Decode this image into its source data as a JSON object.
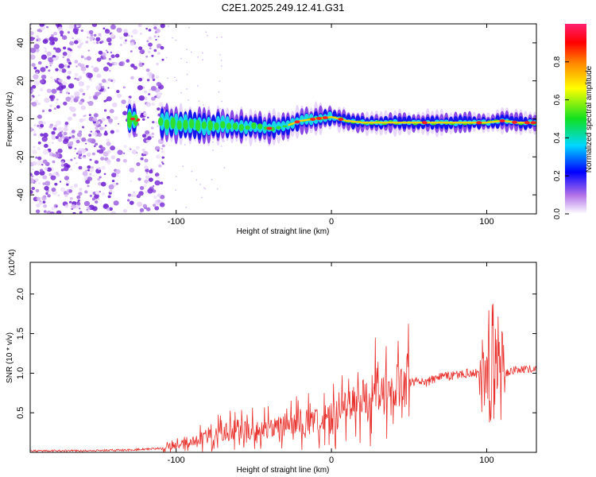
{
  "title": "C2E1.2025.249.12.41.G31",
  "chart_data": [
    {
      "type": "heatmap",
      "name": "spectrogram",
      "xlabel": "Height of straight line (km)",
      "ylabel": "Frequency (Hz)",
      "xlim": [
        -194,
        132
      ],
      "ylim": [
        -50,
        50
      ],
      "xticks": [
        -100,
        0,
        100
      ],
      "yticks": [
        -40,
        -20,
        0,
        20,
        40
      ],
      "colorbar": {
        "label": "Normalized spectral amplitude",
        "range": [
          0,
          1
        ],
        "ticks": [
          0.0,
          0.2,
          0.4,
          0.6,
          0.8
        ]
      },
      "noise_region_x": [
        -194,
        -108
      ],
      "signal_trace": {
        "x": [
          -130,
          -110,
          -100,
          -90,
          -80,
          -70,
          -60,
          -50,
          -40,
          -30,
          -20,
          -10,
          0,
          10,
          20,
          40,
          60,
          80,
          100,
          110,
          120,
          132
        ],
        "freq": [
          0,
          -2,
          -3,
          -3,
          -4,
          -3,
          -4,
          -4,
          -5,
          -4,
          -1,
          0,
          1,
          -1,
          -2,
          -2,
          -2,
          -2,
          -2,
          -1,
          -2,
          -2
        ]
      }
    },
    {
      "type": "line",
      "name": "snr",
      "xlabel": "Height of straight line (km)",
      "ylabel": "SNR (10 * v/v)",
      "y_multiplier_label": "(x10^4)",
      "xlim": [
        -194,
        132
      ],
      "ylim": [
        0,
        2.4
      ],
      "xticks": [
        -100,
        0,
        100
      ],
      "yticks": [
        0.5,
        1.0,
        1.5,
        2.0
      ],
      "color": "#e8312c",
      "x": [
        -194,
        -160,
        -130,
        -110,
        -100,
        -90,
        -80,
        -70,
        -60,
        -50,
        -40,
        -30,
        -20,
        -10,
        0,
        10,
        20,
        30,
        40,
        50,
        60,
        70,
        80,
        90,
        95,
        100,
        104,
        108,
        112,
        120,
        132
      ],
      "values": [
        0.02,
        0.02,
        0.03,
        0.05,
        0.1,
        0.15,
        0.2,
        0.25,
        0.3,
        0.28,
        0.3,
        0.35,
        0.38,
        0.4,
        0.45,
        0.55,
        0.7,
        0.8,
        0.85,
        0.9,
        0.88,
        0.95,
        0.98,
        1.0,
        1.0,
        1.05,
        1.2,
        1.0,
        1.0,
        1.05,
        1.05
      ]
    }
  ]
}
